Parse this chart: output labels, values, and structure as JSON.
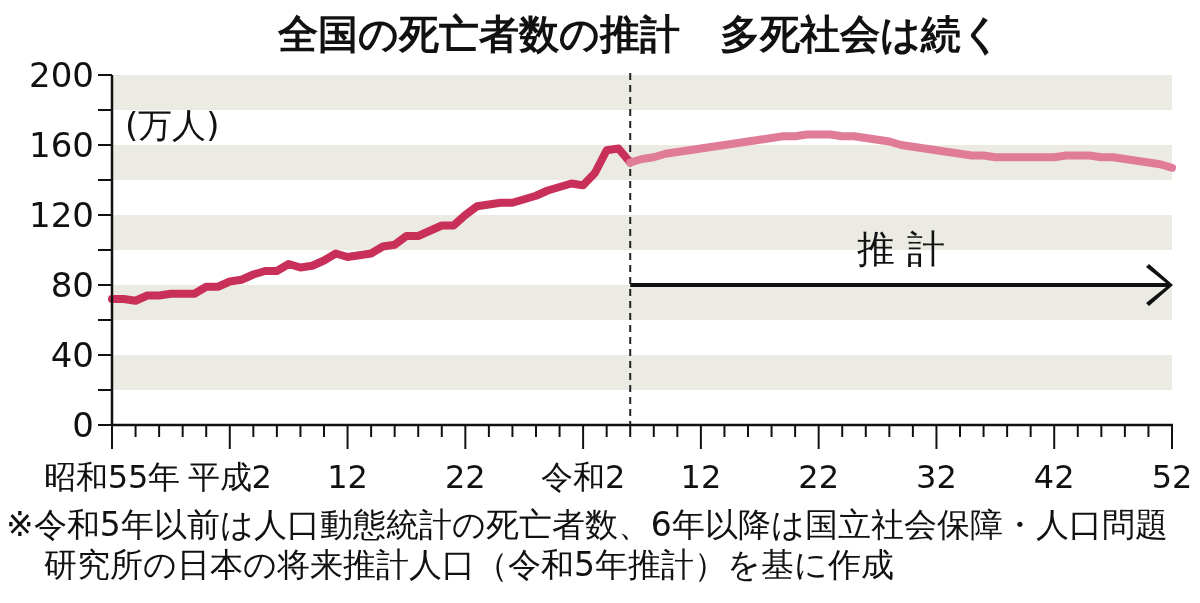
{
  "chart_data": {
    "type": "line",
    "title": "全国の死亡者数の推計　多死社会は続く",
    "ylabel": "(万人)",
    "categories": [
      "昭和55年",
      null,
      null,
      null,
      null,
      null,
      null,
      null,
      null,
      null,
      "平成2",
      null,
      null,
      null,
      null,
      null,
      null,
      null,
      null,
      null,
      "12",
      null,
      null,
      null,
      null,
      null,
      null,
      null,
      null,
      null,
      "22",
      null,
      null,
      null,
      null,
      null,
      null,
      null,
      null,
      null,
      "令和2",
      null,
      null,
      null,
      null,
      null,
      null,
      null,
      null,
      null,
      "12",
      null,
      null,
      null,
      null,
      null,
      null,
      null,
      null,
      null,
      "22",
      null,
      null,
      null,
      null,
      null,
      null,
      null,
      null,
      null,
      "32",
      null,
      null,
      null,
      null,
      null,
      null,
      null,
      null,
      null,
      "42",
      null,
      null,
      null,
      null,
      null,
      null,
      null,
      null,
      null,
      "52"
    ],
    "ylim": [
      0,
      200
    ],
    "yticks": [
      0,
      {
        "value": 20,
        "label": null
      },
      40,
      {
        "value": 60,
        "label": null
      },
      80,
      {
        "value": 100,
        "label": null
      },
      120,
      {
        "value": 140,
        "label": null
      },
      160,
      {
        "value": 180,
        "label": null
      },
      200
    ],
    "grid": false,
    "bands": [
      {
        "axis": "y",
        "from": 20,
        "to": 40,
        "color": "#ecebe3"
      },
      {
        "axis": "y",
        "from": 60,
        "to": 80,
        "color": "#ecebe3"
      },
      {
        "axis": "y",
        "from": 100,
        "to": 120,
        "color": "#ecebe3"
      },
      {
        "axis": "y",
        "from": 140,
        "to": 160,
        "color": "#ecebe3"
      },
      {
        "axis": "y",
        "from": 180,
        "to": 200,
        "color": "#ecebe3"
      }
    ],
    "series": [
      {
        "color": "#c8305a",
        "values": [
          72,
          72,
          71,
          74,
          74,
          75,
          75,
          75,
          79,
          79,
          82,
          83,
          86,
          88,
          88,
          92,
          90,
          91,
          94,
          98,
          96,
          97,
          98,
          102,
          103,
          108,
          108,
          111,
          114,
          114,
          120,
          125,
          126,
          127,
          127,
          129,
          131,
          134,
          136,
          138,
          137,
          144,
          157,
          158,
          150,
          null,
          null,
          null,
          null,
          null,
          null,
          null,
          null,
          null,
          null,
          null,
          null,
          null,
          null,
          null,
          null,
          null,
          null,
          null,
          null,
          null,
          null,
          null,
          null,
          null,
          null,
          null,
          null,
          null,
          null,
          null,
          null,
          null,
          null,
          null,
          null,
          null,
          null,
          null,
          null,
          null,
          null,
          null,
          null,
          null,
          null
        ]
      },
      {
        "color": "#e07b98",
        "values": [
          null,
          null,
          null,
          null,
          null,
          null,
          null,
          null,
          null,
          null,
          null,
          null,
          null,
          null,
          null,
          null,
          null,
          null,
          null,
          null,
          null,
          null,
          null,
          null,
          null,
          null,
          null,
          null,
          null,
          null,
          null,
          null,
          null,
          null,
          null,
          null,
          null,
          null,
          null,
          null,
          null,
          null,
          null,
          null,
          150,
          152,
          153,
          155,
          156,
          157,
          158,
          159,
          160,
          161,
          162,
          163,
          164,
          165,
          165,
          166,
          166,
          166,
          165,
          165,
          164,
          163,
          162,
          160,
          159,
          158,
          157,
          156,
          155,
          154,
          154,
          153,
          153,
          153,
          153,
          153,
          153,
          154,
          154,
          154,
          153,
          153,
          152,
          151,
          150,
          149,
          147
        ]
      }
    ],
    "annotations": [
      {
        "text": "推 計",
        "y": 80
      },
      "※令和5年以前は人口動態統計の死亡者数、6年以降は国立社会保障・人口問題研究所の日本の将来推計人口（令和5年推計）を基に作成"
    ]
  }
}
